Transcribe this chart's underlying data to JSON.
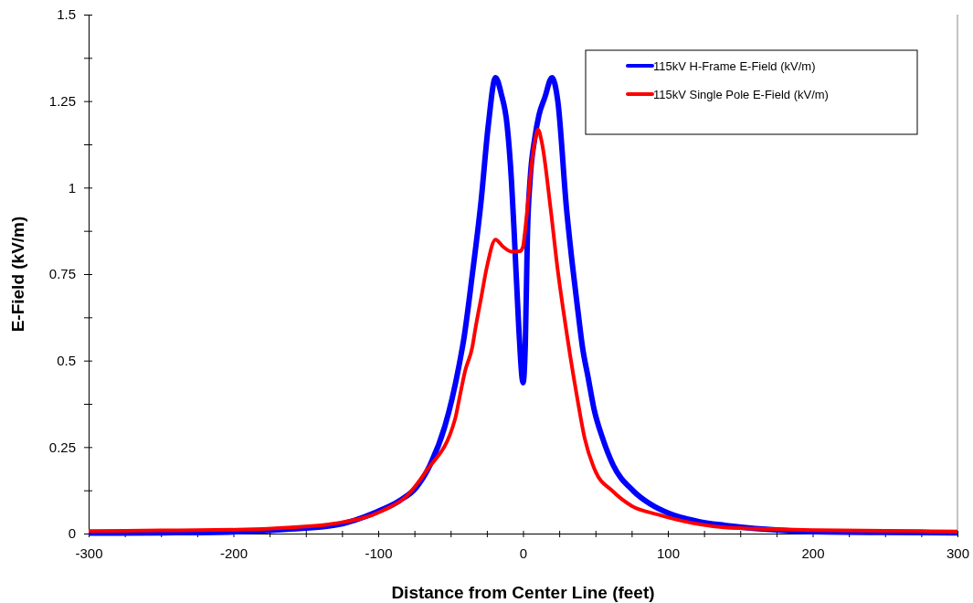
{
  "chart_data": {
    "type": "line",
    "xlabel": "Distance from Center Line (feet)",
    "ylabel": "E-Field (kV/m)",
    "xlim": [
      -300,
      300
    ],
    "xticks": [
      -300,
      {
        "value": -275,
        "label": null
      },
      {
        "value": -250,
        "label": null
      },
      {
        "value": -225,
        "label": null
      },
      -200,
      {
        "value": -175,
        "label": null
      },
      {
        "value": -150,
        "label": null
      },
      {
        "value": -125,
        "label": null
      },
      -100,
      {
        "value": -75,
        "label": null
      },
      {
        "value": -50,
        "label": null
      },
      {
        "value": -25,
        "label": null
      },
      0,
      {
        "value": 25,
        "label": null
      },
      {
        "value": 50,
        "label": null
      },
      {
        "value": 75,
        "label": null
      },
      100,
      {
        "value": 125,
        "label": null
      },
      {
        "value": 150,
        "label": null
      },
      {
        "value": 175,
        "label": null
      },
      200,
      {
        "value": 225,
        "label": null
      },
      {
        "value": 250,
        "label": null
      },
      {
        "value": 275,
        "label": null
      },
      300
    ],
    "ylim": [
      0,
      1.5
    ],
    "yticks": [
      0,
      {
        "value": 0.125,
        "label": null
      },
      0.25,
      {
        "value": 0.375,
        "label": null
      },
      0.5,
      {
        "value": 0.625,
        "label": null
      },
      0.75,
      {
        "value": 0.875,
        "label": null
      },
      1,
      {
        "value": 1.125,
        "label": null
      },
      1.25,
      {
        "value": 1.375,
        "label": null
      },
      1.5
    ],
    "grid": false,
    "legend": "top right",
    "line_style": "solid",
    "marker": "none",
    "series": [
      {
        "name": "115kV H-Frame E-Field (kV/m)",
        "color": "#0000ff",
        "x": [
          -300,
          -250,
          -198,
          -160,
          -130,
          -101,
          -85,
          -74,
          -64,
          -54,
          -49,
          -44,
          -41,
          -35,
          -29,
          -24,
          -19,
          -15,
          -11,
          -8,
          -6,
          -3,
          0,
          1.6,
          3,
          5,
          8,
          11,
          15,
          20,
          24,
          30,
          34,
          38,
          41,
          45,
          49,
          55,
          62,
          76,
          88,
          101,
          120,
          139,
          170,
          202,
          250,
          300
        ],
        "values": [
          0.001,
          0.002,
          0.005,
          0.013,
          0.024,
          0.063,
          0.096,
          0.132,
          0.2,
          0.31,
          0.39,
          0.49,
          0.56,
          0.75,
          0.96,
          1.18,
          1.318,
          1.27,
          1.18,
          1.02,
          0.86,
          0.6,
          0.436,
          0.55,
          0.86,
          1.03,
          1.14,
          1.21,
          1.26,
          1.318,
          1.25,
          0.94,
          0.78,
          0.64,
          0.54,
          0.45,
          0.36,
          0.275,
          0.2,
          0.124,
          0.085,
          0.058,
          0.036,
          0.024,
          0.012,
          0.005,
          0.003,
          0.002
        ]
      },
      {
        "name": "115kV Single Pole E-Field (kV/m)",
        "color": "#ff0000",
        "x": [
          -300,
          -250,
          -198,
          -160,
          -130,
          -97,
          -80,
          -67,
          -47,
          -44,
          -40,
          -35,
          -33,
          -29,
          -25,
          -19,
          -14,
          -8,
          -2,
          0,
          1,
          3,
          6,
          8,
          10.4,
          13,
          19,
          24,
          28,
          37.5,
          42.6,
          50,
          61.5,
          75,
          93,
          115,
          139,
          170,
          202,
          250,
          300
        ],
        "values": [
          0.007,
          0.009,
          0.011,
          0.018,
          0.029,
          0.066,
          0.11,
          0.18,
          0.33,
          0.39,
          0.47,
          0.54,
          0.59,
          0.68,
          0.77,
          0.85,
          0.83,
          0.815,
          0.816,
          0.83,
          0.86,
          0.94,
          1.07,
          1.13,
          1.167,
          1.13,
          0.94,
          0.76,
          0.64,
          0.39,
          0.275,
          0.18,
          0.124,
          0.08,
          0.055,
          0.032,
          0.018,
          0.013,
          0.01,
          0.008,
          0.006
        ]
      }
    ]
  }
}
